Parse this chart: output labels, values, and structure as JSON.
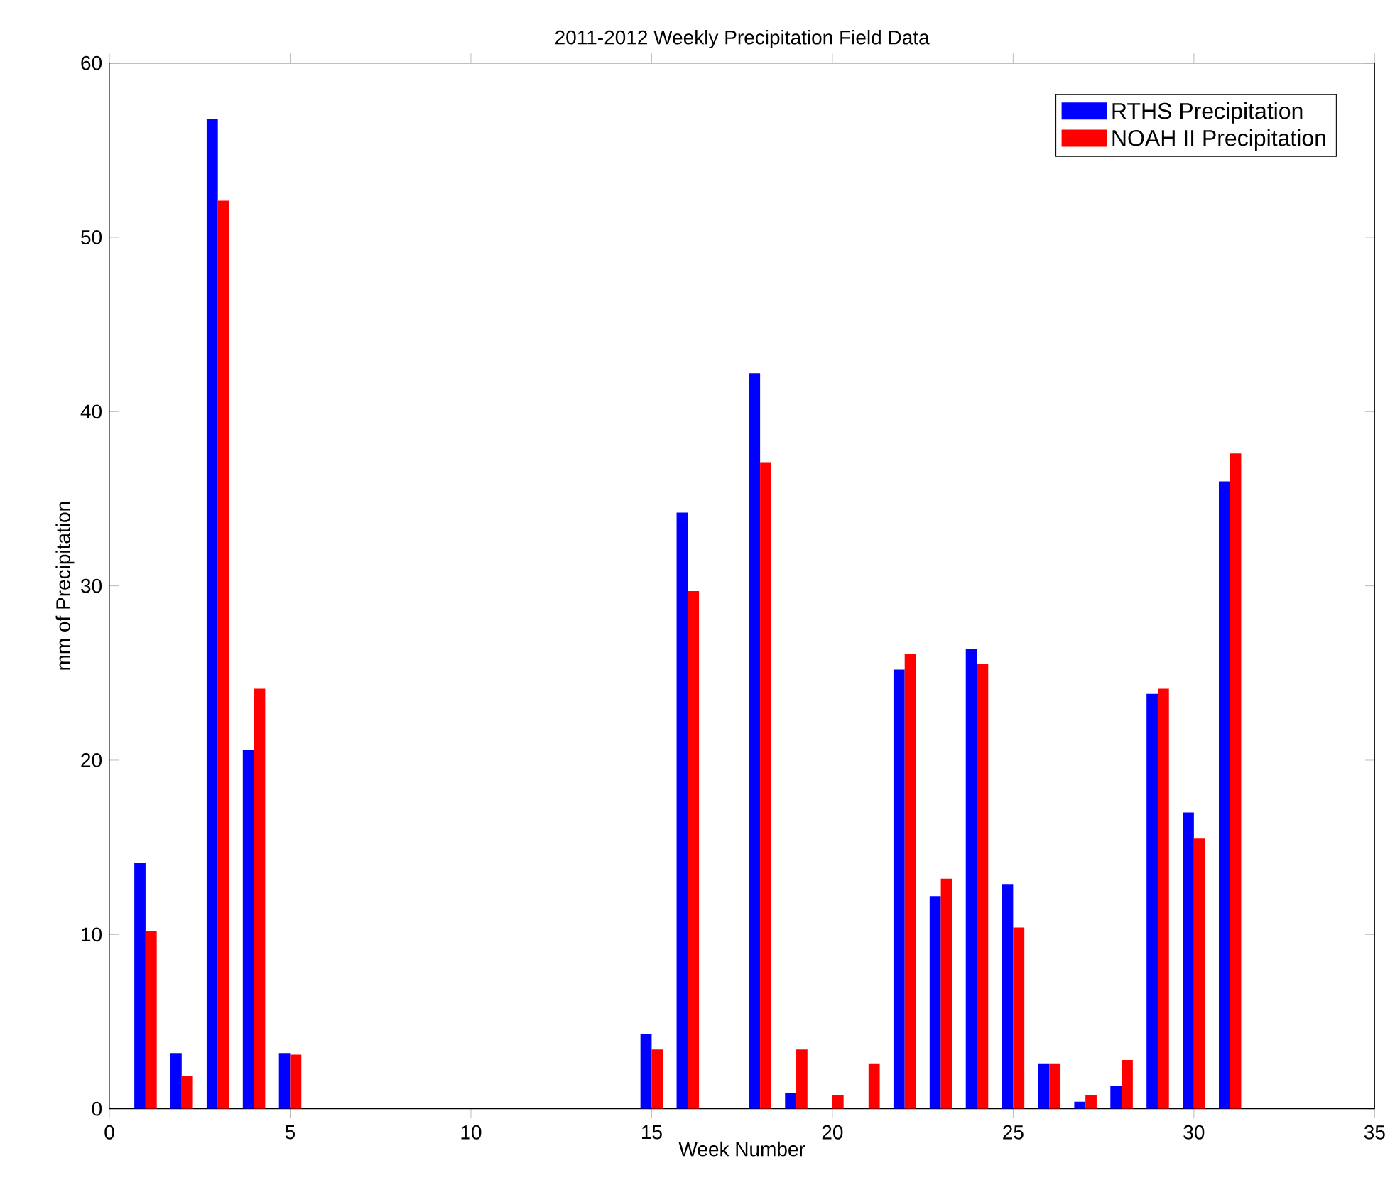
{
  "chart_data": {
    "type": "bar",
    "title": "2011-2012 Weekly Precipitation Field Data",
    "xlabel": "Week Number",
    "ylabel": "mm of Precipitation",
    "x": [
      1,
      2,
      3,
      4,
      5,
      15,
      16,
      18,
      19,
      20,
      21,
      22,
      23,
      24,
      25,
      26,
      27,
      28,
      29,
      30,
      31
    ],
    "series": [
      {
        "name": "RTHS Precipitation",
        "color": "#0000ff",
        "values": [
          14.1,
          3.2,
          56.8,
          20.6,
          3.2,
          4.3,
          34.2,
          42.2,
          0.9,
          0,
          0,
          25.2,
          12.2,
          26.4,
          12.9,
          2.6,
          0.4,
          1.3,
          23.8,
          17.0,
          36.0
        ]
      },
      {
        "name": "NOAH II Precipitation",
        "color": "#ff0000",
        "values": [
          10.2,
          1.9,
          52.1,
          24.1,
          3.1,
          3.4,
          29.7,
          37.1,
          3.4,
          0.8,
          2.6,
          26.1,
          13.2,
          25.5,
          10.4,
          2.6,
          0.8,
          2.8,
          24.1,
          15.5,
          37.6
        ]
      }
    ],
    "xlim": [
      0,
      35
    ],
    "xticks": [
      0,
      5,
      10,
      15,
      20,
      25,
      30,
      35
    ],
    "ylim": [
      0,
      60
    ],
    "yticks": [
      0,
      10,
      20,
      30,
      40,
      50,
      60
    ],
    "legend": "top right"
  }
}
